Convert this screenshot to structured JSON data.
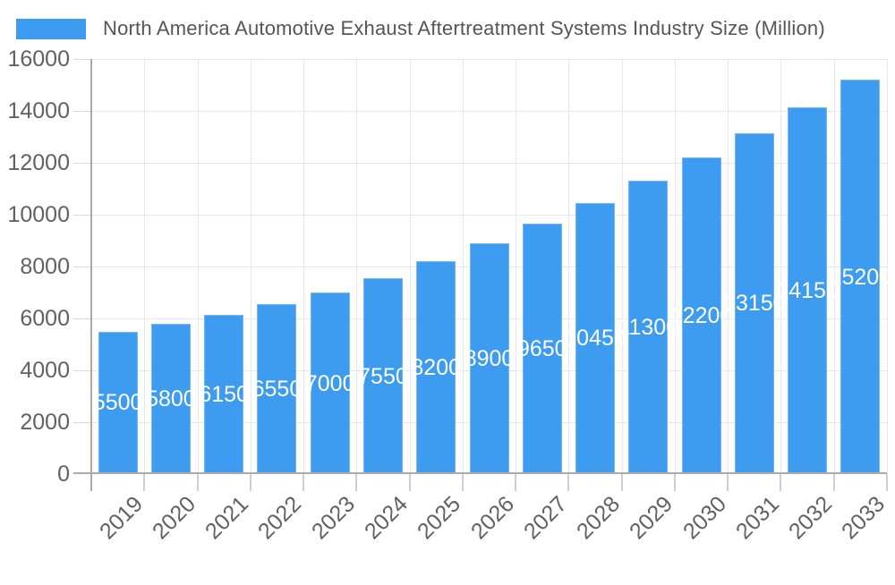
{
  "chart_data": {
    "type": "bar",
    "title": "North America Automotive Exhaust Aftertreatment Systems Industry Size (Million)",
    "categories": [
      "2019",
      "2020",
      "2021",
      "2022",
      "2023",
      "2024",
      "2025",
      "2026",
      "2027",
      "2028",
      "2029",
      "2030",
      "2031",
      "2032",
      "2033"
    ],
    "values": [
      5500,
      5800,
      6150,
      6550,
      7000,
      7550,
      8200,
      8900,
      9650,
      10450,
      11300,
      12200,
      13150,
      14150,
      15200
    ],
    "xlabel": "",
    "ylabel": "",
    "ylim": [
      0,
      16000
    ],
    "ytick_step": 2000,
    "ytick_labels": [
      "0",
      "2000",
      "4000",
      "6000",
      "8000",
      "10000",
      "12000",
      "14000",
      "16000"
    ],
    "grid": true,
    "legend_position": "top-left",
    "value_label_position": "inside-center",
    "colors": {
      "bar": "#3D9BF0",
      "grid": "#E7E7E7",
      "axis": "#ABABAB",
      "tick": "#CFCFCF",
      "axis_label": "#616161",
      "title": "#555555",
      "value_label": "#FFFFFF"
    }
  }
}
